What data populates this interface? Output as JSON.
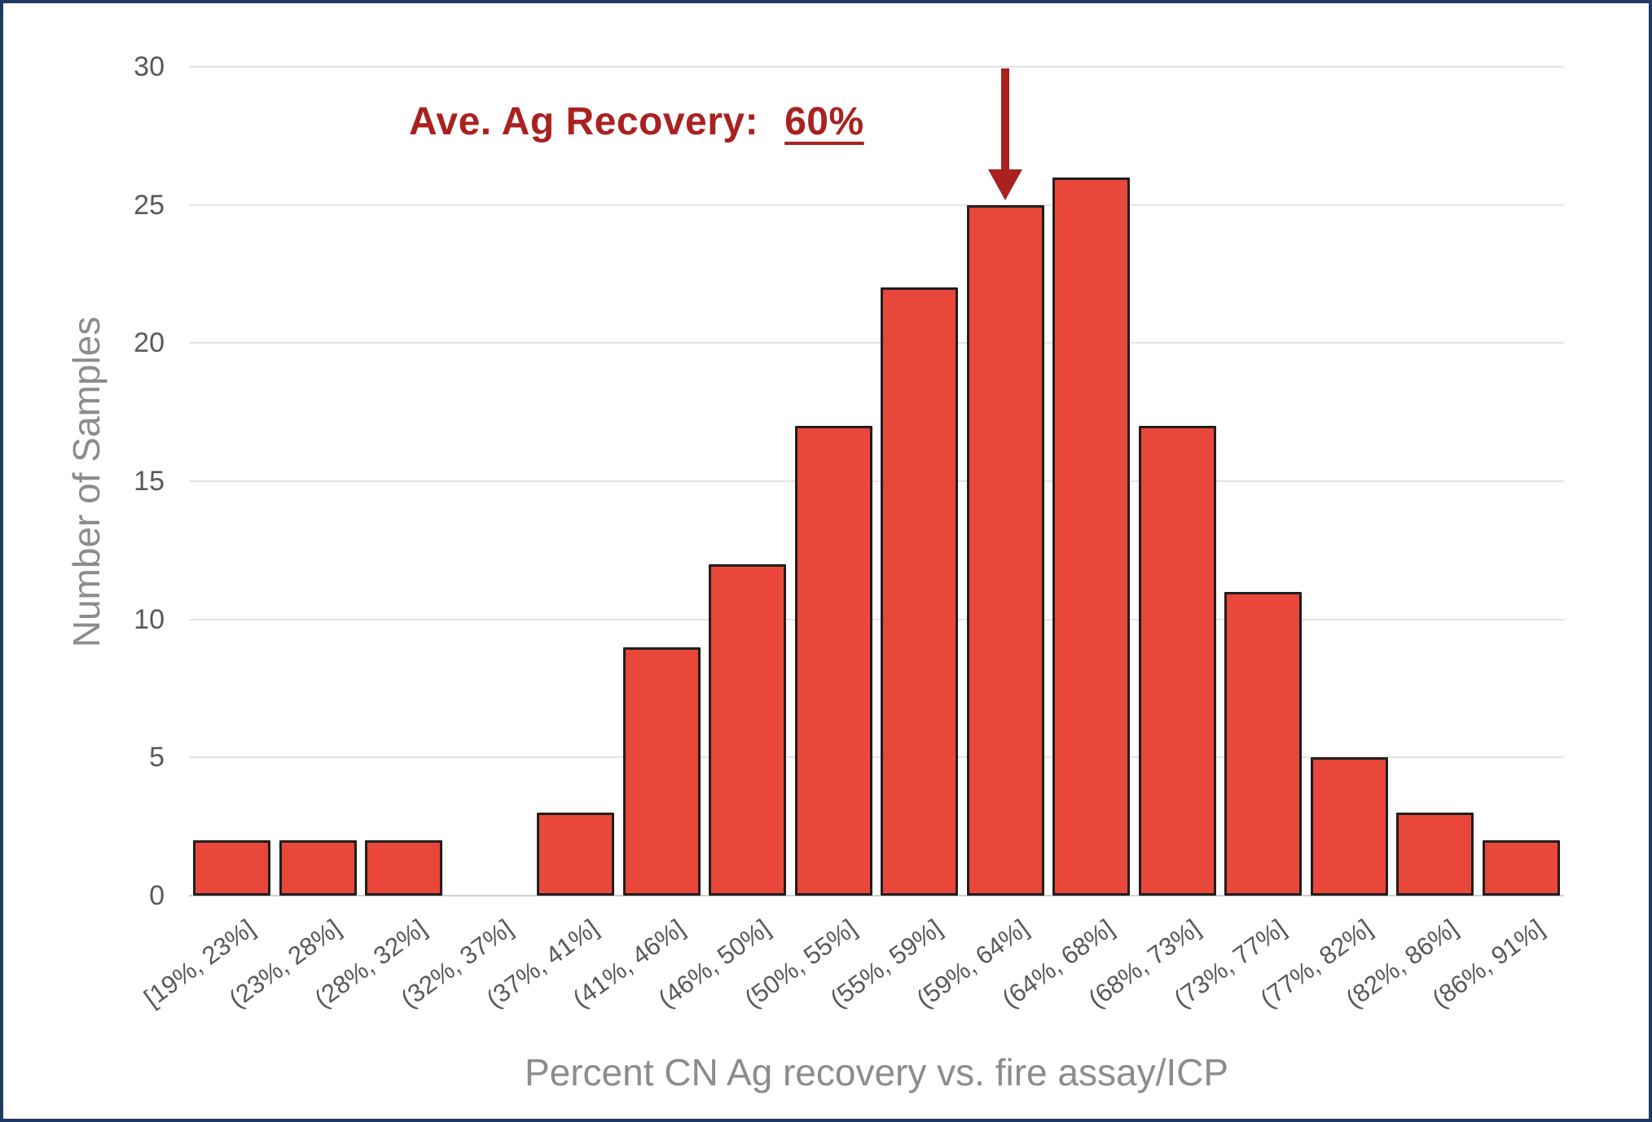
{
  "frame": {
    "border_color": "#203864",
    "background": "#ffffff"
  },
  "annotation": {
    "label": "Ave. Ag Recovery:",
    "value": "60%",
    "color": "#a92220",
    "target_category": "(59%, 64%]"
  },
  "chart_data": {
    "type": "bar",
    "title": "",
    "categories": [
      "[19%, 23%]",
      "(23%, 28%]",
      "(28%, 32%]",
      "(32%, 37%]",
      "(37%, 41%]",
      "(41%, 46%]",
      "(46%, 50%]",
      "(50%, 55%]",
      "(55%, 59%]",
      "(59%, 64%]",
      "(64%, 68%]",
      "(68%, 73%]",
      "(73%, 77%]",
      "(77%, 82%]",
      "(82%, 86%]",
      "(86%, 91%]"
    ],
    "values": [
      2,
      2,
      2,
      0,
      3,
      9,
      12,
      17,
      22,
      25,
      26,
      17,
      11,
      5,
      3,
      2
    ],
    "xlabel": "Percent CN Ag recovery vs. fire assay/ICP",
    "ylabel": "Number of Samples",
    "ylim": [
      0,
      30
    ],
    "yticks": [
      0,
      5,
      10,
      15,
      20,
      25,
      30
    ],
    "grid": true,
    "legend": "none",
    "bar_color": "#e8473a",
    "bar_border_color": "#1f1f1f",
    "gridline_color": "#e4e4e4",
    "baseline_color": "#cfcfcf",
    "tick_text_color": "#595959",
    "axis_title_color": "#8c8c8c"
  }
}
